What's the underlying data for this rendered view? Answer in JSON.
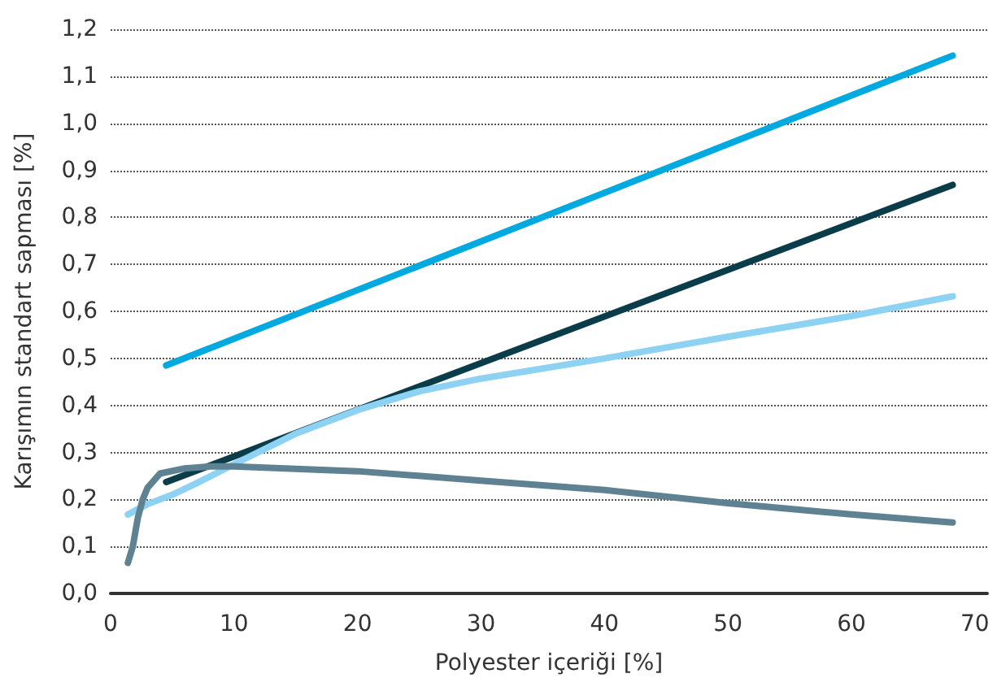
{
  "chart_data": {
    "type": "line",
    "xlabel": "Polyester içeriği [%]",
    "ylabel": "Karışımın standart sapması [%]",
    "xlim": [
      0,
      71
    ],
    "xticks": [
      0,
      10,
      20,
      30,
      40,
      50,
      60,
      70
    ],
    "ylim": [
      0,
      1.2
    ],
    "yticks": [
      {
        "value": 0,
        "label": "0,0"
      },
      {
        "value": 0.1,
        "label": "0,1"
      },
      {
        "value": 0.2,
        "label": "0,2"
      },
      {
        "value": 0.3,
        "label": "0,3"
      },
      {
        "value": 0.4,
        "label": "0,4"
      },
      {
        "value": 0.5,
        "label": "0,5"
      },
      {
        "value": 0.6,
        "label": "0,6"
      },
      {
        "value": 0.7,
        "label": "0,7"
      },
      {
        "value": 0.8,
        "label": "0,8"
      },
      {
        "value": 0.9,
        "label": "0,9"
      },
      {
        "value": 1.0,
        "label": "1,0"
      },
      {
        "value": 1.1,
        "label": "1,1"
      },
      {
        "value": 1.2,
        "label": "1,2"
      }
    ],
    "grid": "y",
    "marker": "none",
    "line_style": "solid",
    "series": [
      {
        "color": "#00a9e0",
        "x": [
          4.5,
          68.2
        ],
        "values": [
          0.485,
          1.144
        ]
      },
      {
        "color": "#0b3c49",
        "x": [
          4.5,
          68.2
        ],
        "values": [
          0.237,
          0.869
        ]
      },
      {
        "color": "#8dd1f3",
        "x": [
          1.4,
          3,
          5,
          7,
          10,
          15,
          20,
          25,
          30,
          40,
          50,
          60,
          68.2
        ],
        "values": [
          0.168,
          0.19,
          0.21,
          0.235,
          0.275,
          0.34,
          0.39,
          0.43,
          0.457,
          0.5,
          0.546,
          0.59,
          0.632
        ]
      },
      {
        "color": "#5e8291",
        "x": [
          1.4,
          1.8,
          2.2,
          2.6,
          3.0,
          4,
          6,
          8,
          10,
          20,
          30,
          40,
          50,
          60,
          68.2
        ],
        "values": [
          0.065,
          0.1,
          0.16,
          0.2,
          0.225,
          0.255,
          0.266,
          0.27,
          0.27,
          0.26,
          0.24,
          0.22,
          0.192,
          0.168,
          0.151
        ]
      }
    ]
  }
}
